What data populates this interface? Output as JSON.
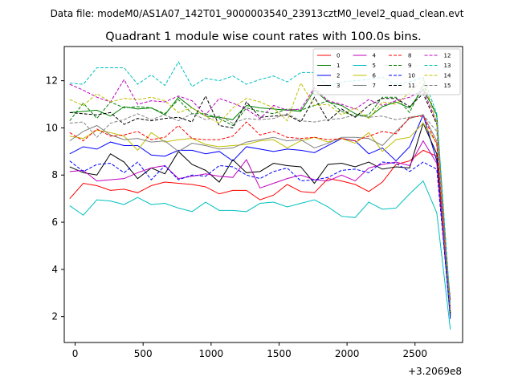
{
  "figure": {
    "suptitle": "Data file: modeM0/AS1A07_142T01_9000003540_23913cztM0_level2_quad_clean.evt"
  },
  "chart_data": {
    "type": "line",
    "title": "Quadrant 1 module wise count rates with 100.0s bins.",
    "xlabel": "",
    "ylabel": "",
    "x_offset_label": "+3.2069e8",
    "xlim": [
      -80,
      2850
    ],
    "ylim": [
      0.9,
      13.45
    ],
    "x_ticks": [
      0,
      500,
      1000,
      1500,
      2000,
      2500
    ],
    "x_tick_labels": [
      "0",
      "500",
      "1000",
      "1500",
      "2000",
      "2500"
    ],
    "y_ticks": [
      2,
      4,
      6,
      8,
      10,
      12
    ],
    "y_tick_labels": [
      "2",
      "4",
      "6",
      "8",
      "10",
      "12"
    ],
    "grid": false,
    "legend": {
      "placement": "top-right",
      "columns": 4
    },
    "x": [
      -40,
      60,
      160,
      260,
      360,
      460,
      560,
      660,
      760,
      860,
      960,
      1060,
      1160,
      1260,
      1360,
      1460,
      1560,
      1660,
      1760,
      1860,
      1960,
      2060,
      2160,
      2260,
      2360,
      2460,
      2560,
      2660,
      2760
    ],
    "series": [
      {
        "name": "0",
        "color": "#ff0000",
        "dash": "solid",
        "values": [
          7.0,
          7.65,
          7.55,
          7.35,
          7.4,
          7.25,
          7.55,
          7.7,
          7.65,
          7.6,
          7.5,
          7.2,
          7.35,
          7.35,
          6.95,
          7.15,
          7.6,
          7.3,
          7.25,
          7.85,
          7.75,
          7.6,
          7.3,
          7.7,
          8.45,
          8.6,
          9.05,
          8.8,
          2.7
        ]
      },
      {
        "name": "1",
        "color": "#008000",
        "dash": "solid",
        "values": [
          10.65,
          10.7,
          10.75,
          10.5,
          10.9,
          10.8,
          10.85,
          10.55,
          11.3,
          10.85,
          10.5,
          10.45,
          10.35,
          10.95,
          10.85,
          10.8,
          10.75,
          10.7,
          11.6,
          11.1,
          10.95,
          10.6,
          10.45,
          10.9,
          11.1,
          10.85,
          11.65,
          10.55,
          2.2
        ]
      },
      {
        "name": "2",
        "color": "#0000ff",
        "dash": "solid",
        "values": [
          8.9,
          9.2,
          9.1,
          9.4,
          9.25,
          9.25,
          8.85,
          8.8,
          9.05,
          9.05,
          8.9,
          9.0,
          8.6,
          9.2,
          9.1,
          9.0,
          9.1,
          9.05,
          8.95,
          9.25,
          9.55,
          9.45,
          8.9,
          9.15,
          8.6,
          9.2,
          10.55,
          8.6,
          1.9
        ]
      },
      {
        "name": "3",
        "color": "#000000",
        "dash": "solid",
        "values": [
          8.35,
          8.1,
          8.0,
          8.9,
          8.55,
          7.85,
          8.3,
          8.05,
          9.0,
          8.45,
          8.2,
          7.7,
          8.65,
          8.1,
          8.15,
          8.5,
          8.4,
          8.35,
          7.65,
          8.45,
          8.5,
          8.35,
          8.55,
          8.25,
          8.35,
          8.3,
          10.2,
          8.9,
          2.1
        ]
      },
      {
        "name": "4",
        "color": "#bf00bf",
        "dash": "solid",
        "values": [
          8.15,
          8.2,
          7.75,
          7.8,
          7.85,
          8.1,
          8.3,
          8.4,
          7.85,
          7.95,
          8.05,
          7.95,
          7.9,
          8.65,
          7.45,
          7.65,
          7.85,
          8.0,
          7.8,
          7.75,
          8.0,
          7.75,
          8.3,
          8.45,
          8.55,
          8.4,
          9.45,
          8.5,
          2.3
        ]
      },
      {
        "name": "5",
        "color": "#00bfbf",
        "dash": "solid",
        "values": [
          6.7,
          6.3,
          6.95,
          6.9,
          6.75,
          7.05,
          6.75,
          6.8,
          6.6,
          6.45,
          6.85,
          6.5,
          6.5,
          6.45,
          6.8,
          6.85,
          6.65,
          6.8,
          6.95,
          6.65,
          6.25,
          6.2,
          6.85,
          6.55,
          6.6,
          7.2,
          7.75,
          6.4,
          1.45
        ]
      },
      {
        "name": "6",
        "color": "#bfbf00",
        "dash": "solid",
        "values": [
          9.65,
          9.55,
          9.9,
          9.8,
          9.65,
          9.05,
          9.8,
          9.4,
          9.5,
          9.55,
          9.3,
          9.2,
          9.25,
          9.3,
          9.45,
          9.5,
          9.15,
          9.45,
          9.6,
          9.4,
          9.55,
          9.35,
          9.8,
          9.0,
          9.5,
          9.6,
          10.2,
          9.35,
          2.0
        ]
      },
      {
        "name": "7",
        "color": "#808080",
        "dash": "solid",
        "values": [
          9.45,
          9.85,
          10.1,
          9.7,
          9.5,
          9.55,
          9.4,
          9.45,
          9.0,
          9.35,
          9.25,
          9.1,
          9.15,
          9.4,
          9.5,
          9.6,
          9.45,
          9.5,
          9.15,
          9.35,
          9.6,
          9.6,
          9.55,
          9.25,
          9.85,
          10.4,
          10.55,
          9.45,
          2.05
        ]
      },
      {
        "name": "8",
        "color": "#ff0000",
        "dash": "dashed",
        "values": [
          9.8,
          9.45,
          9.95,
          9.65,
          9.7,
          9.85,
          9.5,
          9.6,
          10.1,
          9.55,
          9.5,
          9.5,
          9.65,
          10.25,
          9.7,
          9.85,
          9.6,
          9.55,
          9.6,
          9.5,
          9.55,
          9.45,
          9.65,
          9.85,
          9.75,
          10.45,
          10.5,
          9.3,
          2.2
        ]
      },
      {
        "name": "9",
        "color": "#008000",
        "dash": "dashed",
        "values": [
          10.3,
          11.05,
          10.4,
          11.1,
          10.85,
          10.9,
          10.85,
          10.6,
          11.2,
          10.6,
          10.6,
          10.4,
          10.1,
          10.85,
          10.7,
          10.6,
          10.8,
          10.75,
          10.95,
          11.15,
          10.7,
          10.5,
          10.55,
          11.3,
          11.3,
          10.65,
          11.85,
          10.5,
          2.15
        ]
      },
      {
        "name": "10",
        "color": "#0000ff",
        "dash": "dashed",
        "values": [
          8.6,
          8.15,
          8.45,
          8.5,
          8.1,
          8.55,
          7.8,
          8.4,
          7.8,
          8.0,
          7.95,
          8.4,
          8.35,
          8.0,
          7.85,
          8.15,
          8.3,
          7.75,
          7.8,
          7.9,
          8.2,
          8.25,
          8.1,
          8.55,
          8.5,
          8.15,
          8.55,
          8.25,
          2.0
        ]
      },
      {
        "name": "11",
        "color": "#000000",
        "dash": "dashed",
        "values": [
          10.65,
          10.6,
          10.55,
          10.65,
          10.15,
          10.4,
          10.3,
          10.4,
          10.45,
          10.25,
          11.35,
          10.1,
          10.0,
          11.1,
          10.45,
          10.5,
          10.55,
          10.25,
          11.3,
          10.3,
          10.8,
          10.45,
          10.95,
          11.25,
          11.25,
          10.9,
          11.45,
          10.15,
          2.1
        ]
      },
      {
        "name": "12",
        "color": "#bf00bf",
        "dash": "dashed",
        "values": [
          11.85,
          11.6,
          11.3,
          11.1,
          12.05,
          11.0,
          11.15,
          11.1,
          11.35,
          11.15,
          10.55,
          11.25,
          11.05,
          10.8,
          10.4,
          10.95,
          10.75,
          10.8,
          11.7,
          11.15,
          11.0,
          10.8,
          11.2,
          10.95,
          11.15,
          11.3,
          11.6,
          10.25,
          2.35
        ]
      },
      {
        "name": "13",
        "color": "#00bfbf",
        "dash": "dashed",
        "values": [
          11.9,
          11.85,
          12.55,
          12.55,
          12.55,
          11.85,
          12.25,
          11.8,
          12.8,
          11.75,
          12.1,
          12.0,
          12.2,
          11.85,
          12.05,
          12.2,
          11.95,
          12.35,
          12.35,
          11.75,
          11.95,
          12.0,
          12.05,
          12.15,
          11.85,
          11.95,
          12.15,
          10.6,
          2.5
        ]
      },
      {
        "name": "14",
        "color": "#bfbf00",
        "dash": "dashed",
        "values": [
          11.2,
          10.95,
          11.45,
          11.1,
          11.25,
          11.2,
          11.3,
          11.15,
          10.65,
          10.85,
          10.5,
          10.2,
          10.85,
          11.25,
          11.1,
          10.85,
          10.3,
          11.9,
          10.95,
          11.0,
          10.55,
          10.85,
          10.4,
          11.1,
          11.0,
          11.5,
          12.05,
          10.2,
          2.2
        ]
      },
      {
        "name": "15",
        "color": "#808080",
        "dash": "dashed",
        "values": [
          10.2,
          10.25,
          9.6,
          10.2,
          10.35,
          10.6,
          10.35,
          10.55,
          10.3,
          10.6,
          10.35,
          10.5,
          10.2,
          10.4,
          10.35,
          10.4,
          10.6,
          10.3,
          10.25,
          10.35,
          10.4,
          10.55,
          10.45,
          10.5,
          10.35,
          10.45,
          10.55,
          9.85,
          2.25
        ]
      }
    ]
  }
}
